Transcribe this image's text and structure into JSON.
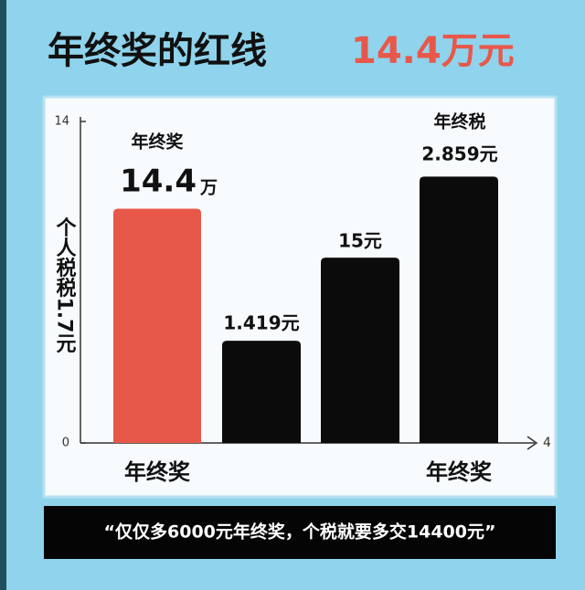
{
  "chart_data": {
    "type": "bar",
    "title": "年终奖的红线",
    "title_highlight": "14.4万元",
    "y_label": "个人税税1.7元",
    "categories": [
      "年终奖",
      null,
      null,
      "年终奖"
    ],
    "values": [
      10.2,
      4.45,
      8.07,
      11.6
    ],
    "colors": [
      "#e8584a",
      "#0b0b0b",
      "#0b0b0b",
      "#0b0b0b"
    ],
    "bar_annotations": [
      [
        "年终奖",
        "14.4",
        "万"
      ],
      [
        "1.419元"
      ],
      [
        "15元"
      ],
      [
        "年终税",
        "2.859元"
      ]
    ],
    "ylim": [
      0,
      14
    ],
    "yticks": [
      0,
      14
    ],
    "x_axis_end_label": "4",
    "quote": "“仅仅多6000元年终奖，个税就要多交14400元”"
  }
}
